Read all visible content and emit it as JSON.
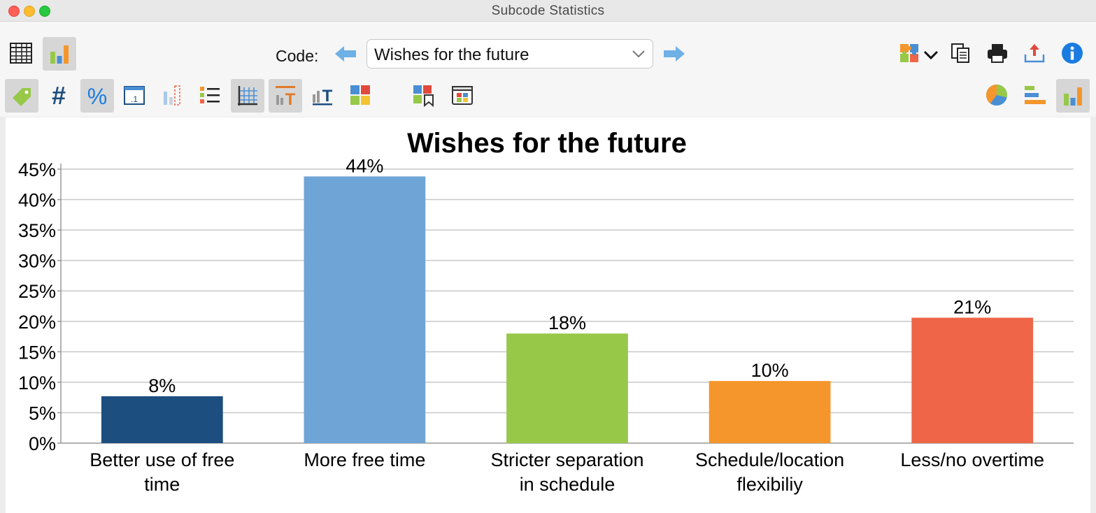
{
  "window": {
    "title": "Subcode Statistics"
  },
  "toolbar": {
    "code_label": "Code:",
    "code_value": "Wishes for the future"
  },
  "icons": {
    "row1_left": [
      "table-view-icon",
      "chart-view-icon"
    ],
    "row1_right": [
      "puzzle-options-icon",
      "chevron-down-icon",
      "copy-icon",
      "print-icon",
      "export-icon",
      "info-icon"
    ],
    "row2_left": [
      "tag-icon",
      "hash-icon",
      "percent-icon",
      "decimal-icon",
      "missing-values-icon",
      "list-icon",
      "grid-lines-icon",
      "title-toggle-icon",
      "axis-title-icon",
      "color-palette-icon",
      "color-scheme-icon",
      "export-chart-icon"
    ],
    "row2_right": [
      "pie-chart-icon",
      "horizontal-bar-icon",
      "vertical-bar-icon"
    ]
  },
  "colors": {
    "accent_blue": "#1a7ce0",
    "bar_colors": [
      "#1d4e80",
      "#6fa5d6",
      "#97c848",
      "#f4962c",
      "#ef6547"
    ]
  },
  "chart_data": {
    "type": "bar",
    "title": "Wishes for the future",
    "categories": [
      [
        "Better use of free",
        "time"
      ],
      [
        "More free time"
      ],
      [
        "Stricter separation",
        "in schedule"
      ],
      [
        "Schedule/location",
        "flexibiliy"
      ],
      [
        "Less/no overtime"
      ]
    ],
    "values": [
      7.7,
      43.8,
      18.0,
      10.2,
      20.6
    ],
    "data_labels": [
      "8%",
      "44%",
      "18%",
      "10%",
      "21%"
    ],
    "ylim": [
      0,
      45
    ],
    "yticks": [
      0,
      5,
      10,
      15,
      20,
      25,
      30,
      35,
      40,
      45
    ],
    "ytick_labels": [
      "0%",
      "5%",
      "10%",
      "15%",
      "20%",
      "25%",
      "30%",
      "35%",
      "40%",
      "45%"
    ],
    "grid": true,
    "legend": "none"
  }
}
